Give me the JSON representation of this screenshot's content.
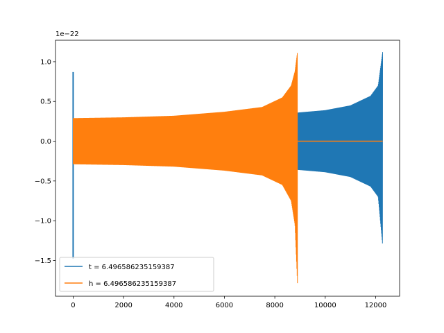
{
  "chart_data": {
    "type": "line",
    "title": "",
    "xlabel": "",
    "ylabel": "",
    "y_offset_label": "1e−22",
    "xlim": [
      -700,
      12950
    ],
    "ylim": [
      -1.95,
      1.27
    ],
    "x_ticks": [
      0,
      2000,
      4000,
      6000,
      8000,
      10000,
      12000
    ],
    "x_tick_labels": [
      "0",
      "2000",
      "4000",
      "6000",
      "8000",
      "10000",
      "12000"
    ],
    "y_ticks": [
      -1.5,
      -1.0,
      -0.5,
      0.0,
      0.5,
      1.0
    ],
    "y_tick_labels": [
      "−1.5",
      "−1.0",
      "−0.5",
      "0.0",
      "0.5",
      "1.0"
    ],
    "grid": false,
    "legend_position": "lower-left",
    "series": [
      {
        "name": "t = 6.496586235159387",
        "color": "#1f77b4",
        "description_points": {
          "x_start": 0,
          "x_end": 12280,
          "envelope_x": [
            0,
            2000,
            4000,
            6000,
            8000,
            8900,
            10000,
            11000,
            11800,
            12100,
            12280
          ],
          "envelope_upper": [
            0.28,
            0.29,
            0.3,
            0.31,
            0.33,
            0.36,
            0.39,
            0.45,
            0.57,
            0.7,
            1.13
          ],
          "envelope_lower": [
            -0.28,
            -0.29,
            -0.3,
            -0.31,
            -0.33,
            -0.36,
            -0.39,
            -0.45,
            -0.57,
            -0.7,
            -1.32
          ],
          "start_spike_max": 0.87,
          "start_spike_min": -1.48
        }
      },
      {
        "name": "h = 6.496586235159387",
        "color": "#ff7f0e",
        "description_points": {
          "x_start": 0,
          "x_end": 8900,
          "envelope_x": [
            0,
            2000,
            4000,
            6000,
            7500,
            8300,
            8650,
            8800,
            8900
          ],
          "envelope_upper": [
            0.29,
            0.3,
            0.32,
            0.37,
            0.43,
            0.55,
            0.7,
            0.88,
            1.13
          ],
          "envelope_lower": [
            -0.29,
            -0.3,
            -0.32,
            -0.37,
            -0.43,
            -0.55,
            -0.75,
            -1.05,
            -1.8
          ],
          "flat_after_x": [
            8900,
            12280
          ],
          "flat_value": 0.0
        }
      }
    ]
  }
}
